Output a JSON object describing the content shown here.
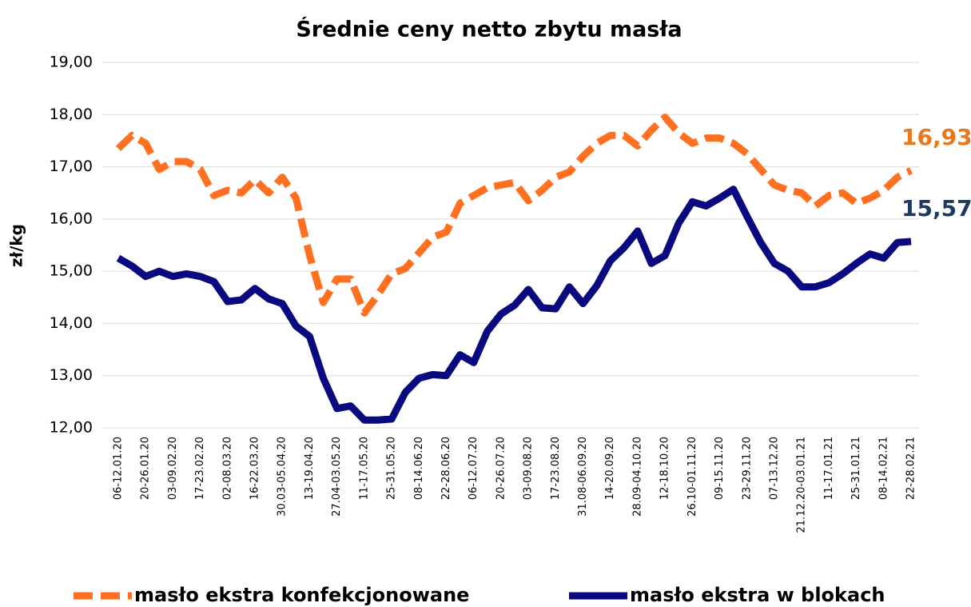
{
  "chart_data": {
    "type": "line",
    "title": "Średnie ceny netto zbytu masła",
    "y_label": "zł/kg",
    "categories": [
      "06-12.01.20",
      null,
      "20-26.01.20",
      null,
      "03-09.02.20",
      null,
      "17-23.02.20",
      null,
      "02-08.03.20",
      null,
      "16-22.03.20",
      null,
      "30.03-05.04.20",
      null,
      "13-19.04.20",
      null,
      "27.04-03.05.20",
      null,
      "11-17.05.20",
      null,
      "25-31.05.20",
      null,
      "08-14.06.20",
      null,
      "22-28.06.20",
      null,
      "06-12.07.20",
      null,
      "20-26.07.20",
      null,
      "03-09.08.20",
      null,
      "17-23.08.20",
      null,
      "31.08-06.09.20",
      null,
      "14-20.09.20",
      null,
      "28.09-04.10.20",
      null,
      "12-18.10.20",
      null,
      "26.10-01.11.20",
      null,
      "09-15.11.20",
      null,
      "23-29.11.20",
      null,
      "07-13.12.20",
      null,
      "21.12.20-03.01.21",
      null,
      "11-17.01.21",
      null,
      "25-31.01.21",
      null,
      "08-14.02.21",
      null,
      "22-28.02.21"
    ],
    "series": [
      {
        "name": "masło ekstra konfekcjonowane",
        "color": "#ff7020",
        "dashed": true,
        "label_color": "#e8781c",
        "values": [
          17.35,
          17.6,
          17.45,
          16.95,
          17.1,
          17.1,
          16.95,
          16.45,
          16.55,
          16.5,
          16.75,
          16.5,
          16.8,
          16.4,
          15.3,
          14.4,
          14.85,
          14.85,
          14.2,
          14.55,
          14.95,
          15.05,
          15.35,
          15.65,
          15.75,
          16.3,
          16.45,
          16.6,
          16.65,
          16.7,
          16.35,
          16.55,
          16.8,
          16.9,
          17.2,
          17.45,
          17.6,
          17.6,
          17.4,
          17.7,
          17.95,
          17.65,
          17.45,
          17.55,
          17.55,
          17.45,
          17.25,
          16.95,
          16.65,
          16.55,
          16.5,
          16.25,
          16.45,
          16.5,
          16.3,
          16.4,
          16.55,
          16.8,
          16.93
        ],
        "value_labels": [
          null,
          null,
          null,
          null,
          null,
          null,
          null,
          null,
          null,
          null,
          null,
          null,
          null,
          null,
          null,
          null,
          null,
          null,
          null,
          null,
          null,
          null,
          null,
          null,
          null,
          null,
          null,
          null,
          null,
          null,
          null,
          null,
          null,
          null,
          null,
          null,
          null,
          null,
          null,
          null,
          null,
          null,
          null,
          null,
          null,
          null,
          null,
          null,
          null,
          null,
          null,
          null,
          null,
          null,
          null,
          null,
          null,
          null,
          "16,93"
        ]
      },
      {
        "name": "masło ekstra w blokach",
        "color": "#0a0a80",
        "dashed": false,
        "label_color": "#1f3a5f",
        "values": [
          15.25,
          15.1,
          14.9,
          15.0,
          14.9,
          14.95,
          14.9,
          14.8,
          14.42,
          14.45,
          14.67,
          14.47,
          14.38,
          13.95,
          13.75,
          12.95,
          12.37,
          12.42,
          12.15,
          12.15,
          12.17,
          12.68,
          12.95,
          13.02,
          13.0,
          13.4,
          13.25,
          13.85,
          14.18,
          14.35,
          14.65,
          14.3,
          14.28,
          14.7,
          14.38,
          14.72,
          15.2,
          15.45,
          15.77,
          15.15,
          15.3,
          15.92,
          16.33,
          16.25,
          16.4,
          16.57,
          16.05,
          15.55,
          15.15,
          15.0,
          14.7,
          14.7,
          14.78,
          14.95,
          15.15,
          15.33,
          15.25,
          15.55,
          15.57
        ],
        "value_labels": [
          null,
          null,
          null,
          null,
          null,
          null,
          null,
          null,
          null,
          null,
          null,
          null,
          null,
          null,
          null,
          null,
          null,
          null,
          null,
          null,
          null,
          null,
          null,
          null,
          null,
          null,
          null,
          null,
          null,
          null,
          null,
          null,
          null,
          null,
          null,
          null,
          null,
          null,
          null,
          null,
          null,
          null,
          null,
          null,
          null,
          null,
          null,
          null,
          null,
          null,
          null,
          null,
          null,
          null,
          null,
          null,
          null,
          null,
          "15,57"
        ]
      }
    ],
    "ylim": [
      12,
      19
    ],
    "yticks": [
      {
        "value": 12,
        "label": "12,00"
      },
      {
        "value": 13,
        "label": "13,00"
      },
      {
        "value": 14,
        "label": "14,00"
      },
      {
        "value": 15,
        "label": "15,00"
      },
      {
        "value": 16,
        "label": "16,00"
      },
      {
        "value": 17,
        "label": "17,00"
      },
      {
        "value": 18,
        "label": "18,00"
      },
      {
        "value": 19,
        "label": "19,00"
      }
    ],
    "grid": true,
    "legend": "bottom"
  }
}
